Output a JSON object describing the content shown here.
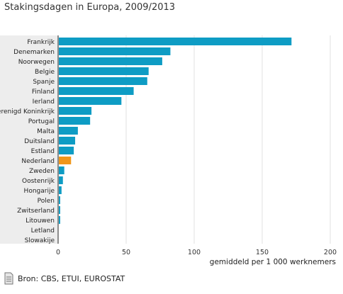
{
  "chart_data": {
    "type": "bar",
    "orientation": "horizontal",
    "title": "Stakingsdagen in Europa, 2009/2013",
    "xlabel": "gemiddeld per 1 000 werknemers",
    "ylabel": "",
    "xlim": [
      0,
      200
    ],
    "xticks": [
      "0",
      "50",
      "100",
      "150",
      "200"
    ],
    "categories": [
      "Frankrijk",
      "Denemarken",
      "Noorwegen",
      "Belgie",
      "Spanje",
      "Finland",
      "Ierland",
      "Verenigd Koninkrijk",
      "Portugal",
      "Malta",
      "Duitsland",
      "Estland",
      "Nederland",
      "Zweden",
      "Oostenrijk",
      "Hongarije",
      "Polen",
      "Zwitserland",
      "Litouwen",
      "Letland",
      "Slowakije"
    ],
    "values": [
      171,
      82,
      76,
      66,
      65,
      55,
      46,
      24,
      23,
      14,
      12,
      11,
      9,
      4,
      3,
      2,
      1,
      1,
      1,
      0,
      0
    ],
    "colors": [
      "#0e9cc4",
      "#0e9cc4",
      "#0e9cc4",
      "#0e9cc4",
      "#0e9cc4",
      "#0e9cc4",
      "#0e9cc4",
      "#0e9cc4",
      "#0e9cc4",
      "#0e9cc4",
      "#0e9cc4",
      "#0e9cc4",
      "#f0961a",
      "#0e9cc4",
      "#0e9cc4",
      "#0e9cc4",
      "#0e9cc4",
      "#0e9cc4",
      "#0e9cc4",
      "#0e9cc4",
      "#0e9cc4"
    ],
    "grid": true,
    "legend": "none"
  },
  "source": {
    "text": "Bron: CBS, ETUI, EUROSTAT",
    "icon": "document-icon"
  }
}
